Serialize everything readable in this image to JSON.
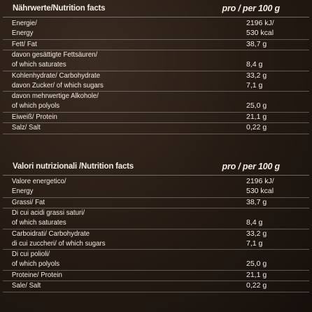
{
  "section1": {
    "header_left": "Nährwerte/Nutrition facts",
    "header_right": "pro / per 100 g",
    "rows": [
      {
        "name": "Energie/",
        "value": "2196 kJ/"
      },
      {
        "name": "Energy",
        "value": "530 kcal"
      },
      {
        "name": "Fett/ Fat",
        "value": "38,7 g"
      },
      {
        "name": "davon gesättigte Fettsäuren/",
        "value": ""
      },
      {
        "name": "of which saturates",
        "value": "8,4 g"
      },
      {
        "name": "Kohlenhydrate/ Carbohydrate",
        "value": "33,2 g"
      },
      {
        "name": "davon Zucker/ of which sugars",
        "value": "7,1 g"
      },
      {
        "name": "davon mehrwertige Alkohole/",
        "value": ""
      },
      {
        "name": "of which polyols",
        "value": "25,0 g"
      },
      {
        "name": "Eiweiß/ Protein",
        "value": "21,1 g"
      },
      {
        "name": "Salz/ Salt",
        "value": "0,22 g"
      }
    ]
  },
  "section2": {
    "header_left": "Valori nutrizionali /Nutrition facts",
    "header_right": "pro / per 100 g",
    "rows": [
      {
        "name": "Valore energetico/",
        "value": "2196 kJ/"
      },
      {
        "name": "Energy",
        "value": "530 kcal"
      },
      {
        "name": "Grassi/ Fat",
        "value": "38,7 g"
      },
      {
        "name": "Di cui acidi grassi saturi/",
        "value": ""
      },
      {
        "name": "of which saturates",
        "value": "8,4 g"
      },
      {
        "name": "Carboidrati/ Carbohydrate",
        "value": "33,2 g"
      },
      {
        "name": "di cui zuccheri/ of which sugars",
        "value": "7,1 g"
      },
      {
        "name": "Di cui polioli/",
        "value": ""
      },
      {
        "name": "of which polyols",
        "value": "25,0 g"
      },
      {
        "name": "Proteine/ Protein",
        "value": "21,1 g"
      },
      {
        "name": "Sale/ Salt",
        "value": "0,22 g"
      }
    ]
  }
}
